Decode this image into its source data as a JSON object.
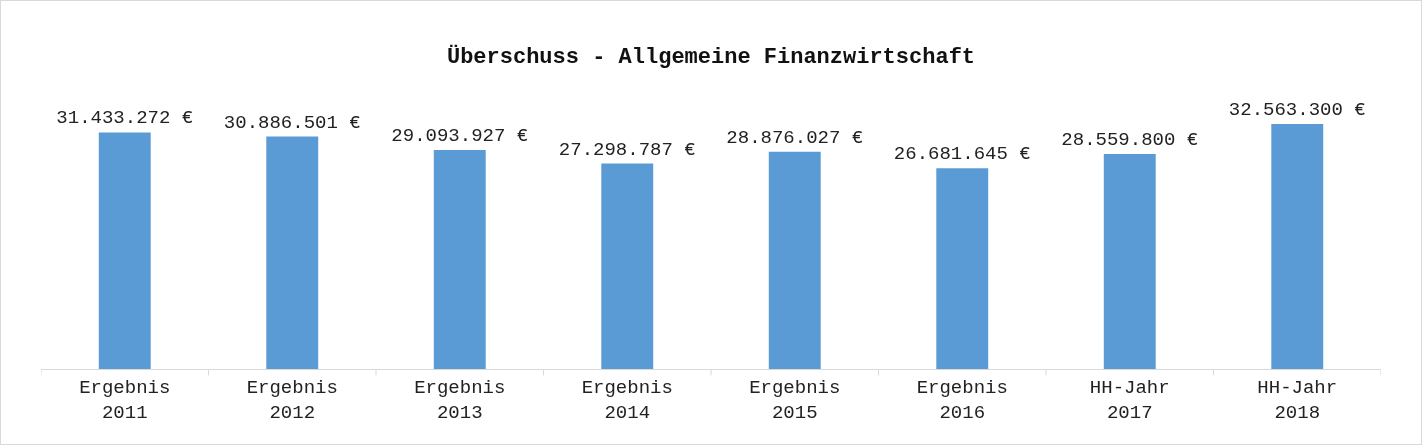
{
  "chart_data": {
    "type": "bar",
    "title": "Überschuss - Allgemeine Finanzwirtschaft",
    "categories": [
      "Ergebnis 2011",
      "Ergebnis 2012",
      "Ergebnis 2013",
      "Ergebnis 2014",
      "Ergebnis 2015",
      "Ergebnis 2016",
      "HH-Jahr 2017",
      "HH-Jahr 2018"
    ],
    "values": [
      31433272,
      30886501,
      29093927,
      27298787,
      28876027,
      26681645,
      28559800,
      32563300
    ],
    "value_labels": [
      "31.433.272 €",
      "30.886.501 €",
      "29.093.927 €",
      "27.298.787 €",
      "28.876.027 €",
      "26.681.645 €",
      "28.559.800 €",
      "32.563.300 €"
    ],
    "color": "#5b9bd5",
    "tick_labels": "x",
    "legend": false
  }
}
